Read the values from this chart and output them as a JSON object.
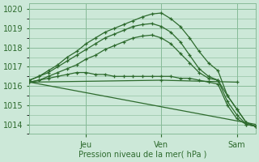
{
  "background_color": "#cce8d8",
  "grid_color": "#88bb99",
  "line_color": "#2d6a2d",
  "xlabel": "Pression niveau de la mer( hPa )",
  "ylim": [
    1013.5,
    1020.3
  ],
  "yticks": [
    1014,
    1015,
    1016,
    1017,
    1018,
    1019,
    1020
  ],
  "xlim": [
    0,
    144
  ],
  "xtick_positions": [
    36,
    84,
    132
  ],
  "xtick_labels": [
    "Jeu",
    "Ven",
    "Sam"
  ],
  "vlines": [
    36,
    84,
    132
  ],
  "lines": [
    {
      "x": [
        0,
        6,
        12,
        18,
        24,
        30,
        36,
        42,
        48,
        54,
        60,
        66,
        72,
        78,
        84,
        90,
        96,
        102,
        108,
        114,
        120,
        126,
        132,
        138,
        144
      ],
      "y": [
        1016.3,
        1016.5,
        1016.8,
        1017.1,
        1017.5,
        1017.8,
        1018.2,
        1018.5,
        1018.8,
        1019.0,
        1019.2,
        1019.4,
        1019.6,
        1019.75,
        1019.8,
        1019.5,
        1019.1,
        1018.5,
        1017.8,
        1017.2,
        1016.8,
        1015.5,
        1014.8,
        1014.1,
        1013.9
      ]
    },
    {
      "x": [
        0,
        6,
        12,
        18,
        24,
        30,
        36,
        42,
        48,
        54,
        60,
        66,
        72,
        78,
        84,
        90,
        96,
        102,
        108,
        114,
        120,
        126,
        132,
        138,
        144
      ],
      "y": [
        1016.3,
        1016.5,
        1016.7,
        1017.0,
        1017.3,
        1017.6,
        1017.9,
        1018.2,
        1018.5,
        1018.7,
        1018.9,
        1019.1,
        1019.2,
        1019.25,
        1019.1,
        1018.8,
        1018.3,
        1017.6,
        1016.9,
        1016.5,
        1016.3,
        1015.2,
        1014.5,
        1014.0,
        1013.9
      ]
    },
    {
      "x": [
        0,
        6,
        12,
        18,
        24,
        30,
        36,
        42,
        48,
        54,
        60,
        66,
        72,
        78,
        84,
        90,
        96,
        102,
        108,
        114,
        120,
        126,
        132,
        138,
        144
      ],
      "y": [
        1016.2,
        1016.3,
        1016.5,
        1016.7,
        1016.9,
        1017.1,
        1017.4,
        1017.6,
        1017.9,
        1018.1,
        1018.3,
        1018.5,
        1018.6,
        1018.65,
        1018.5,
        1018.2,
        1017.7,
        1017.2,
        1016.7,
        1016.4,
        1016.3,
        1015.5,
        1014.8,
        1014.1,
        1013.9
      ]
    },
    {
      "x": [
        0,
        6,
        12,
        18,
        24,
        30,
        36,
        42,
        48,
        54,
        60,
        66,
        72,
        78,
        84,
        90,
        96,
        102,
        108,
        114,
        120,
        126,
        132,
        138,
        144
      ],
      "y": [
        1016.2,
        1016.3,
        1016.4,
        1016.5,
        1016.6,
        1016.7,
        1016.7,
        1016.6,
        1016.6,
        1016.5,
        1016.5,
        1016.5,
        1016.5,
        1016.5,
        1016.5,
        1016.5,
        1016.4,
        1016.4,
        1016.3,
        1016.2,
        1016.1,
        1015.0,
        1014.3,
        1014.0,
        1013.9
      ]
    },
    {
      "x": [
        0,
        84,
        132
      ],
      "y": [
        1016.2,
        1016.3,
        1016.2
      ]
    },
    {
      "x": [
        0,
        144
      ],
      "y": [
        1016.2,
        1014.0
      ],
      "no_marker": true
    }
  ]
}
